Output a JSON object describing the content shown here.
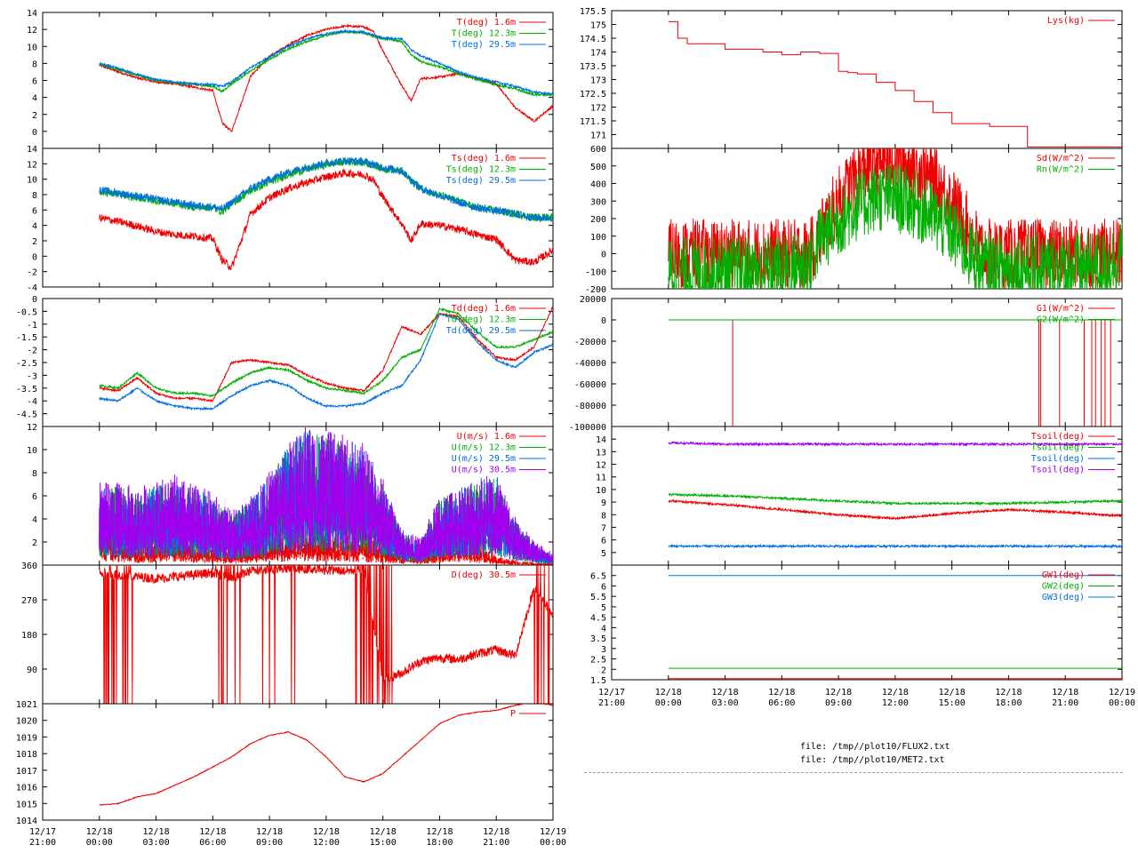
{
  "colors": {
    "red": "#ee0000",
    "green": "#00b000",
    "blue": "#0070e0",
    "purple": "#a000ee"
  },
  "x_axis": {
    "left": [
      [
        "12/17",
        "21:00"
      ],
      [
        "12/18",
        "00:00"
      ],
      [
        "12/18",
        "03:00"
      ],
      [
        "12/18",
        "06:00"
      ],
      [
        "12/18",
        "09:00"
      ],
      [
        "12/18",
        "12:00"
      ],
      [
        "12/18",
        "15:00"
      ],
      [
        "12/18",
        "18:00"
      ],
      [
        "12/18",
        "21:00"
      ],
      [
        "12/19",
        "00:00"
      ]
    ],
    "right": [
      [
        "12/17",
        "21:00"
      ],
      [
        "12/18",
        "00:00"
      ],
      [
        "12/18",
        "03:00"
      ],
      [
        "12/18",
        "06:00"
      ],
      [
        "12/18",
        "09:00"
      ],
      [
        "12/18",
        "12:00"
      ],
      [
        "12/18",
        "15:00"
      ],
      [
        "12/18",
        "18:00"
      ],
      [
        "12/18",
        "21:00"
      ],
      [
        "12/19",
        "00:00"
      ]
    ]
  },
  "files": [
    "file: /tmp//plot10/FLUX2.txt",
    "file: /tmp//plot10/MET2.txt"
  ],
  "chart_data": [
    {
      "type": "line",
      "panel": "left-1",
      "ylim": [
        -2,
        14
      ],
      "yticks": [
        "0",
        "2",
        "4",
        "6",
        "8",
        "10",
        "12",
        "14"
      ],
      "x_hours": [
        0,
        1,
        2,
        3,
        4,
        5,
        6,
        6.5,
        7,
        8,
        9,
        10,
        11,
        12,
        13,
        14,
        14.5,
        15,
        16,
        16.5,
        17,
        18,
        19,
        20,
        21,
        22,
        23,
        24
      ],
      "series": [
        {
          "name": "T(deg)  1.6m",
          "color": "red",
          "values": [
            7.8,
            7.0,
            6.3,
            5.8,
            5.6,
            5.2,
            4.8,
            1.0,
            0.0,
            6.5,
            8.8,
            10.2,
            11.3,
            12.0,
            12.4,
            12.3,
            11.8,
            9.5,
            5.4,
            3.6,
            6.2,
            6.4,
            6.8,
            6.2,
            5.6,
            2.8,
            1.2,
            3.0
          ]
        },
        {
          "name": "T(deg) 12.3m",
          "color": "green",
          "values": [
            7.9,
            7.3,
            6.6,
            6.0,
            5.7,
            5.5,
            5.3,
            4.7,
            5.6,
            7.1,
            8.5,
            9.7,
            10.6,
            11.3,
            11.7,
            11.6,
            11.2,
            10.9,
            10.6,
            9.0,
            8.2,
            7.6,
            6.8,
            6.1,
            5.5,
            5.0,
            4.3,
            4.3
          ]
        },
        {
          "name": "T(deg) 29.5m",
          "color": "blue",
          "values": [
            8.0,
            7.4,
            6.7,
            6.1,
            5.8,
            5.6,
            5.5,
            5.3,
            5.8,
            7.5,
            8.8,
            10.0,
            10.9,
            11.5,
            11.8,
            11.7,
            11.3,
            11.0,
            10.9,
            9.6,
            8.9,
            8.0,
            7.0,
            6.3,
            5.8,
            5.3,
            4.6,
            4.4
          ]
        }
      ]
    },
    {
      "type": "line",
      "panel": "left-2",
      "ylim": [
        -4,
        14
      ],
      "yticks": [
        "-4",
        "-2",
        "0",
        "2",
        "4",
        "6",
        "8",
        "10",
        "12",
        "14"
      ],
      "x_hours": [
        0,
        1,
        2,
        3,
        4,
        5,
        6,
        6.5,
        7,
        8,
        9,
        10,
        11,
        12,
        13,
        14,
        14.5,
        15,
        16,
        16.5,
        17,
        18,
        19,
        20,
        21,
        22,
        23,
        24
      ],
      "series": [
        {
          "name": "Ts(deg)  1.6m",
          "color": "red",
          "values": [
            5.0,
            4.5,
            3.9,
            3.2,
            2.8,
            2.6,
            2.3,
            -0.5,
            -1.5,
            5.5,
            7.6,
            8.8,
            9.6,
            10.3,
            10.8,
            10.6,
            9.9,
            7.7,
            4.2,
            2.0,
            4.2,
            4.0,
            3.5,
            2.8,
            2.2,
            -0.5,
            -0.8,
            0.8
          ]
        },
        {
          "name": "Ts(deg) 12.3m",
          "color": "green",
          "values": [
            8.4,
            8.0,
            7.6,
            7.2,
            6.8,
            6.4,
            6.3,
            5.8,
            6.8,
            8.5,
            9.6,
            10.6,
            11.3,
            11.9,
            12.3,
            12.2,
            11.8,
            11.4,
            11.0,
            9.8,
            8.8,
            7.9,
            7.1,
            6.3,
            5.9,
            5.5,
            5.0,
            5.1
          ]
        },
        {
          "name": "Ts(deg) 29.5m",
          "color": "blue",
          "values": [
            8.6,
            8.2,
            7.8,
            7.4,
            7.0,
            6.6,
            6.4,
            6.1,
            7.0,
            8.8,
            10.0,
            10.9,
            11.6,
            12.1,
            12.4,
            12.3,
            11.9,
            11.5,
            11.1,
            9.9,
            8.8,
            7.9,
            7.0,
            6.3,
            5.9,
            5.5,
            5.0,
            5.0
          ]
        }
      ]
    },
    {
      "type": "line",
      "panel": "left-3",
      "ylim": [
        -5,
        0
      ],
      "yticks": [
        "-4.5",
        "-4",
        "-3.5",
        "-3",
        "-2.5",
        "-2",
        "-1.5",
        "-1",
        "-0.5",
        "0"
      ],
      "x_hours": [
        0,
        1,
        2,
        3,
        4,
        5,
        6,
        7,
        8,
        9,
        10,
        11,
        12,
        13,
        14,
        15,
        16,
        17,
        18,
        19,
        20,
        21,
        22,
        23,
        24
      ],
      "series": [
        {
          "name": "Td(deg)  1.6m",
          "color": "red",
          "values": [
            -3.5,
            -3.6,
            -3.1,
            -3.7,
            -3.9,
            -3.9,
            -4.0,
            -2.5,
            -2.4,
            -2.5,
            -2.6,
            -3.0,
            -3.3,
            -3.5,
            -3.6,
            -2.8,
            -1.1,
            -1.4,
            -0.6,
            -0.7,
            -1.6,
            -2.3,
            -2.4,
            -1.9,
            -0.3
          ]
        },
        {
          "name": "Td(deg) 12.3m",
          "color": "green",
          "values": [
            -3.4,
            -3.5,
            -2.9,
            -3.5,
            -3.7,
            -3.7,
            -3.8,
            -3.3,
            -2.9,
            -2.7,
            -2.8,
            -3.2,
            -3.5,
            -3.6,
            -3.7,
            -3.2,
            -2.3,
            -2.0,
            -0.4,
            -0.6,
            -1.3,
            -1.9,
            -1.9,
            -1.6,
            -1.3
          ]
        },
        {
          "name": "Td(deg) 29.5m",
          "color": "blue",
          "values": [
            -3.9,
            -4.0,
            -3.5,
            -4.0,
            -4.2,
            -4.3,
            -4.3,
            -3.8,
            -3.4,
            -3.2,
            -3.4,
            -3.9,
            -4.2,
            -4.2,
            -4.1,
            -3.7,
            -3.4,
            -2.4,
            -0.6,
            -0.8,
            -1.7,
            -2.4,
            -2.7,
            -2.1,
            -1.8
          ]
        }
      ]
    },
    {
      "type": "line",
      "panel": "left-4",
      "ylim": [
        0,
        12
      ],
      "yticks": [
        "2",
        "4",
        "6",
        "8",
        "10",
        "12"
      ],
      "x_hours": [
        0,
        1,
        2,
        3,
        4,
        5,
        6,
        7,
        8,
        9,
        10,
        11,
        12,
        13,
        14,
        15,
        16,
        17,
        18,
        19,
        20,
        21,
        22,
        23,
        24
      ],
      "series": [
        {
          "name": "U(m/s)  1.6m",
          "color": "red",
          "values": [
            1.5,
            1.3,
            0.8,
            1.0,
            1.2,
            0.9,
            0.8,
            0.5,
            0.9,
            1.2,
            1.4,
            1.5,
            1.4,
            1.3,
            1.2,
            0.9,
            0.5,
            0.4,
            0.9,
            1.2,
            0.9,
            0.4,
            0.2,
            0.1,
            0.1
          ]
        },
        {
          "name": "U(m/s) 12.3m",
          "color": "green",
          "values": [
            3.3,
            3.2,
            3.0,
            3.2,
            3.5,
            3.1,
            2.8,
            2.0,
            2.6,
            3.6,
            4.8,
            5.5,
            5.3,
            5.1,
            4.8,
            3.4,
            1.3,
            1.0,
            2.7,
            3.1,
            3.5,
            3.6,
            1.8,
            0.9,
            0.4
          ]
        },
        {
          "name": "U(m/s) 29.5m",
          "color": "blue",
          "values": [
            3.2,
            3.2,
            3.0,
            3.3,
            3.5,
            3.1,
            2.9,
            2.1,
            2.7,
            3.7,
            4.9,
            5.6,
            5.3,
            5.2,
            4.9,
            3.5,
            1.4,
            1.0,
            2.8,
            3.1,
            3.6,
            3.7,
            1.9,
            0.9,
            0.4
          ]
        },
        {
          "name": "U(m/s) 30.5m",
          "color": "purple",
          "values": [
            3.4,
            3.4,
            3.2,
            3.5,
            3.7,
            3.3,
            3.0,
            2.2,
            2.8,
            3.9,
            5.0,
            5.8,
            5.5,
            5.3,
            5.0,
            3.6,
            1.5,
            1.1,
            2.9,
            3.2,
            3.7,
            3.8,
            2.0,
            1.0,
            0.5
          ]
        }
      ]
    },
    {
      "type": "line",
      "panel": "left-5",
      "ylim": [
        0,
        360
      ],
      "yticks": [
        "90",
        "180",
        "270",
        "360"
      ],
      "x_hours": [
        0,
        1,
        2,
        3,
        4,
        5,
        6,
        7,
        8,
        9,
        10,
        11,
        12,
        13,
        14,
        15,
        16,
        17,
        18,
        19,
        20,
        21,
        22,
        23,
        24
      ],
      "series": [
        {
          "name": "D(deg)  30.5m",
          "color": "red",
          "values": [
            340,
            335,
            330,
            325,
            330,
            335,
            340,
            325,
            345,
            350,
            352,
            350,
            348,
            345,
            350,
            60,
            80,
            110,
            120,
            115,
            130,
            140,
            125,
            300,
            230
          ]
        }
      ]
    },
    {
      "type": "line",
      "panel": "left-6",
      "ylim": [
        1014,
        1021
      ],
      "yticks": [
        "1014",
        "1015",
        "1016",
        "1017",
        "1018",
        "1019",
        "1020",
        "1021"
      ],
      "x_hours": [
        0,
        1,
        2,
        3,
        4,
        5,
        6,
        7,
        8,
        9,
        10,
        11,
        12,
        13,
        14,
        15,
        16,
        17,
        18,
        19,
        20,
        21,
        22,
        23,
        24
      ],
      "series": [
        {
          "name": "P",
          "color": "red",
          "values": [
            1014.9,
            1015.0,
            1015.4,
            1015.6,
            1016.1,
            1016.6,
            1017.2,
            1017.8,
            1018.6,
            1019.1,
            1019.3,
            1018.8,
            1017.8,
            1016.6,
            1016.3,
            1016.8,
            1017.8,
            1018.8,
            1019.8,
            1020.3,
            1020.5,
            1020.6,
            1020.9,
            1021.1,
            1020.9
          ]
        }
      ]
    },
    {
      "type": "line",
      "panel": "right-1",
      "ylim": [
        170.5,
        175.5
      ],
      "yticks": [
        "171",
        "171.5",
        "172",
        "172.5",
        "173",
        "173.5",
        "174",
        "174.5",
        "175",
        "175.5"
      ],
      "x_hours": [
        0,
        0.5,
        1,
        3,
        5,
        6,
        7,
        8,
        9,
        9.5,
        10,
        11,
        12,
        13,
        14,
        15,
        17,
        18,
        19,
        20,
        24
      ],
      "series": [
        {
          "name": "Lys(kg)",
          "color": "red",
          "values": [
            175.1,
            174.5,
            174.3,
            174.1,
            174.0,
            173.9,
            174.0,
            173.95,
            173.3,
            173.25,
            173.2,
            172.9,
            172.6,
            172.2,
            171.8,
            171.4,
            171.3,
            171.3,
            170.55,
            170.55,
            170.55
          ]
        }
      ]
    },
    {
      "type": "line",
      "panel": "right-2",
      "ylim": [
        -200,
        600
      ],
      "yticks": [
        "-200",
        "-100",
        "0",
        "100",
        "200",
        "300",
        "400",
        "500",
        "600"
      ],
      "x_hours": [
        0,
        3,
        6,
        7.5,
        8,
        9,
        10,
        11,
        12,
        13,
        14,
        15,
        16,
        16.5,
        17,
        18,
        20,
        22,
        23,
        24
      ],
      "series": [
        {
          "name": "Sd(W/m^2)",
          "color": "red",
          "values": [
            0,
            0,
            0,
            0,
            110,
            300,
            450,
            530,
            535,
            500,
            420,
            300,
            120,
            20,
            0,
            0,
            0,
            0,
            0,
            0
          ]
        },
        {
          "name": "Rn(W/m^2)",
          "color": "green",
          "values": [
            -110,
            -100,
            -90,
            -55,
            80,
            180,
            270,
            320,
            320,
            280,
            210,
            120,
            -10,
            -60,
            -80,
            -85,
            -80,
            -75,
            -70,
            -10
          ]
        }
      ]
    },
    {
      "type": "line",
      "panel": "right-3",
      "ylim": [
        -100000,
        20000
      ],
      "yticks": [
        "-100000",
        "-80000",
        "-60000",
        "-40000",
        "-20000",
        "0",
        "20000"
      ],
      "x_hours": [
        0,
        24
      ],
      "series": [
        {
          "name": "G1(W/m^2)",
          "color": "red",
          "values": [
            0,
            0
          ],
          "spikes_hours": [
            3.4,
            19.6,
            19.7,
            20.7,
            22.0,
            22.4,
            22.6,
            22.9,
            23.1,
            23.4
          ]
        },
        {
          "name": "G2(W/m^2)",
          "color": "green",
          "values": [
            0,
            0
          ]
        }
      ]
    },
    {
      "type": "line",
      "panel": "right-4",
      "ylim": [
        4,
        15
      ],
      "yticks": [
        "5",
        "6",
        "7",
        "8",
        "9",
        "10",
        "11",
        "12",
        "13",
        "14"
      ],
      "x_hours": [
        0,
        3,
        6,
        9,
        12,
        15,
        18,
        21,
        24
      ],
      "series": [
        {
          "name": "Tsoil(deg)",
          "color": "red",
          "values": [
            9.1,
            8.8,
            8.4,
            8.0,
            7.7,
            8.1,
            8.4,
            8.2,
            7.9
          ]
        },
        {
          "name": "Tsoil(deg)",
          "color": "green",
          "values": [
            9.6,
            9.5,
            9.3,
            9.1,
            8.9,
            8.9,
            8.9,
            9.0,
            9.1
          ]
        },
        {
          "name": "Tsoil(deg)",
          "color": "blue",
          "values": [
            5.5,
            5.5,
            5.5,
            5.5,
            5.5,
            5.5,
            5.5,
            5.5,
            5.5
          ]
        },
        {
          "name": "Tsoil(deg)",
          "color": "purple",
          "values": [
            13.7,
            13.6,
            13.6,
            13.6,
            13.6,
            13.6,
            13.6,
            13.6,
            13.6
          ]
        }
      ]
    },
    {
      "type": "line",
      "panel": "right-5",
      "ylim": [
        1.5,
        7
      ],
      "yticks": [
        "1.5",
        "2",
        "2.5",
        "3",
        "3.5",
        "4",
        "4.5",
        "5",
        "5.5",
        "6",
        "6.5"
      ],
      "x_hours": [
        0,
        24
      ],
      "series": [
        {
          "name": "GW1(deg)",
          "color": "red",
          "values": [
            1.55,
            1.55
          ]
        },
        {
          "name": "GW2(deg)",
          "color": "green",
          "values": [
            2.05,
            2.05
          ]
        },
        {
          "name": "GW3(deg)",
          "color": "blue",
          "values": [
            6.5,
            6.5
          ]
        }
      ]
    }
  ]
}
